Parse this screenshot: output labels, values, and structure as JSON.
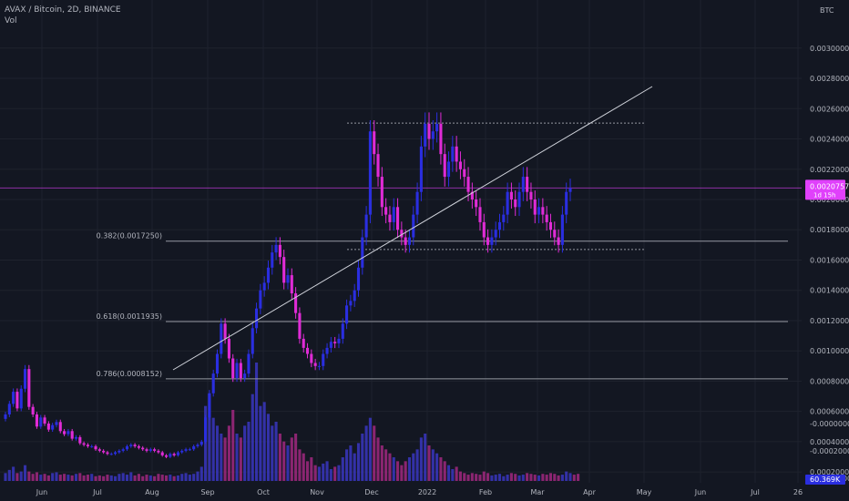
{
  "header": {
    "symbol_line": "AVAX / Bitcoin, 2D, BINANCE",
    "volume_label": "Vol"
  },
  "colors": {
    "up": "#2a2ee0",
    "down": "#e02bd6",
    "vol_up": "#3a36c0",
    "vol_down": "#a1287f",
    "background": "#131722",
    "price_line": "#e040fb",
    "level": "#9598a1",
    "trend": "#d1d4dc"
  },
  "chart_data": {
    "type": "candlestick",
    "currency_label": "BTC",
    "y_ticks": [
      0.003,
      0.0028,
      0.0026,
      0.0024,
      0.0022,
      0.002,
      0.0018,
      0.0016,
      0.0014,
      0.0012,
      0.001,
      0.0008,
      0.0006,
      0.0004,
      0.0002
    ],
    "y_tick_labels": [
      "0.0030000",
      "0.0028000",
      "0.0026000",
      "0.0024000",
      "0.0022000",
      "0.0020000",
      "0.0018000",
      "0.0016000",
      "0.0014000",
      "0.0012000",
      "0.0010000",
      "0.0008000",
      "0.0006000",
      "0.0004000",
      "0.0002000"
    ],
    "lower_axis_labels": [
      "-0.0000000",
      "-0.0002000",
      "-0.0004000"
    ],
    "x_labels": [
      "Jun",
      "Jul",
      "Aug",
      "Sep",
      "Oct",
      "Nov",
      "Dec",
      "2022",
      "Feb",
      "Mar",
      "Apr",
      "May",
      "Jun",
      "Jul",
      "26"
    ],
    "last_price_label": "0.0020757",
    "countdown_label": "1d 15h",
    "volume_value_label": "60.369K",
    "fib_levels": [
      {
        "label": "0.382(0.0017250)",
        "price": 0.001725
      },
      {
        "label": "0.618(0.0011935)",
        "price": 0.0011935
      },
      {
        "label": "0.786(0.0008152)",
        "price": 0.0008152
      }
    ],
    "range_top_price": 0.002505,
    "range_bottom_price": 0.00167,
    "last_price": 0.0020757,
    "closes": [
      0.00058,
      0.00065,
      0.00073,
      0.00062,
      0.00075,
      0.00088,
      0.00063,
      0.00058,
      0.0005,
      0.00056,
      0.00052,
      0.00048,
      0.00051,
      0.00053,
      0.00047,
      0.00045,
      0.00047,
      0.00042,
      0.00043,
      0.00039,
      0.00038,
      0.00037,
      0.00037,
      0.00035,
      0.00034,
      0.00033,
      0.00032,
      0.00032,
      0.00033,
      0.00034,
      0.00035,
      0.00037,
      0.00038,
      0.00037,
      0.00036,
      0.00035,
      0.00034,
      0.00035,
      0.00034,
      0.00033,
      0.00031,
      0.0003,
      0.00032,
      0.00031,
      0.00033,
      0.00034,
      0.00035,
      0.00035,
      0.00037,
      0.00038,
      0.0004,
      0.00056,
      0.00072,
      0.00085,
      0.00098,
      0.00118,
      0.00108,
      0.00095,
      0.00082,
      0.00092,
      0.00082,
      0.00085,
      0.00098,
      0.00115,
      0.00128,
      0.0014,
      0.00145,
      0.00155,
      0.00165,
      0.0017,
      0.00162,
      0.00145,
      0.0015,
      0.00138,
      0.00125,
      0.00108,
      0.00102,
      0.00098,
      0.00092,
      0.0009,
      0.0009,
      0.00098,
      0.00102,
      0.00106,
      0.00105,
      0.00108,
      0.00118,
      0.0013,
      0.00133,
      0.0014,
      0.00155,
      0.00175,
      0.0019,
      0.00245,
      0.0023,
      0.00215,
      0.00195,
      0.0019,
      0.00185,
      0.00195,
      0.0018,
      0.00175,
      0.0017,
      0.00175,
      0.0019,
      0.00205,
      0.00235,
      0.0025,
      0.0024,
      0.00245,
      0.0025,
      0.0023,
      0.00215,
      0.00225,
      0.00235,
      0.00225,
      0.0022,
      0.00215,
      0.00205,
      0.002,
      0.00195,
      0.00185,
      0.00175,
      0.0017,
      0.00175,
      0.0018,
      0.00185,
      0.0019,
      0.00205,
      0.002,
      0.00195,
      0.00205,
      0.00215,
      0.00205,
      0.002,
      0.0019,
      0.00195,
      0.0019,
      0.00185,
      0.0018,
      0.00175,
      0.0017,
      0.0019,
      0.00205,
      0.0020757
    ],
    "volumes": [
      10,
      14,
      18,
      10,
      12,
      20,
      12,
      9,
      11,
      8,
      9,
      7,
      10,
      11,
      8,
      9,
      8,
      7,
      9,
      10,
      7,
      8,
      9,
      6,
      7,
      6,
      8,
      7,
      6,
      9,
      10,
      8,
      11,
      7,
      9,
      6,
      8,
      7,
      6,
      9,
      8,
      7,
      8,
      6,
      7,
      9,
      10,
      8,
      9,
      12,
      18,
      95,
      110,
      80,
      70,
      60,
      55,
      70,
      90,
      60,
      55,
      70,
      75,
      110,
      150,
      95,
      100,
      85,
      70,
      75,
      60,
      50,
      45,
      55,
      60,
      40,
      35,
      25,
      30,
      20,
      18,
      22,
      25,
      15,
      18,
      20,
      30,
      40,
      45,
      35,
      48,
      60,
      70,
      80,
      70,
      55,
      45,
      40,
      35,
      30,
      25,
      20,
      25,
      30,
      35,
      40,
      55,
      60,
      45,
      40,
      35,
      30,
      25,
      20,
      15,
      18,
      12,
      10,
      8,
      10,
      9,
      8,
      12,
      10,
      7,
      8,
      9,
      6,
      8,
      10,
      9,
      7,
      8,
      10,
      9,
      8,
      7,
      9,
      8,
      10,
      9,
      7,
      8,
      12,
      10,
      8,
      9
    ],
    "volume_ylim": [
      0,
      150
    ]
  }
}
